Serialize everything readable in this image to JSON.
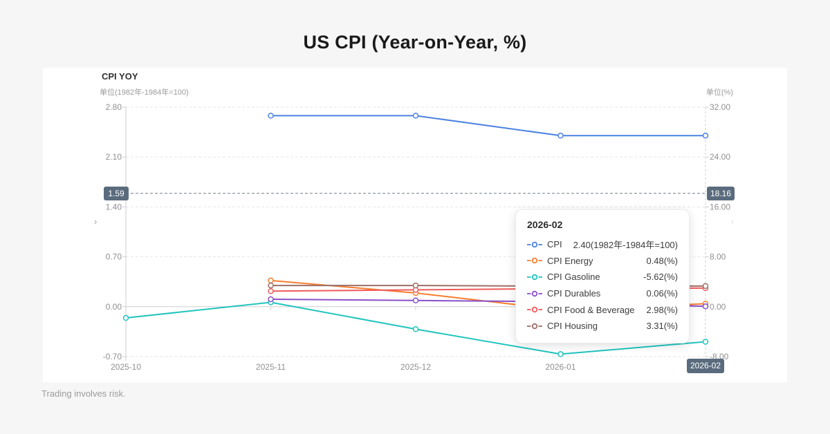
{
  "page": {
    "title": "US CPI (Year-on-Year, %)",
    "footer": "Trading involves risk."
  },
  "chart": {
    "header": "CPI YOY",
    "left_axis_unit": "单位(1982年-1984年=100)",
    "right_axis_unit": "单位(%)",
    "left_marker": "1.59",
    "right_marker": "18.16",
    "x_highlight": "2026-02",
    "pan_left_glyph": "›",
    "pan_right_glyph": "›"
  },
  "chart_data": {
    "type": "line",
    "categories": [
      "2025-10",
      "2025-11",
      "2025-12",
      "2026-01",
      "2026-02"
    ],
    "left_axis": {
      "ticks": [
        "2.80",
        "2.10",
        "1.40",
        "0.70",
        "0.00",
        "-0.70"
      ],
      "range": [
        -0.7,
        2.8
      ],
      "label": "单位(1982年-1984年=100)"
    },
    "right_axis": {
      "ticks": [
        "32.00",
        "24.00",
        "16.00",
        "8.00",
        "0.00",
        "-8.00"
      ],
      "range": [
        -8.0,
        32.0
      ],
      "label": "单位(%)"
    },
    "grid": true,
    "legend_position": "tooltip-only",
    "crosshair": {
      "left_value": 1.59,
      "right_value": 18.16,
      "category": "2026-02"
    },
    "series": [
      {
        "name": "CPI",
        "axis": "left",
        "color": "#4b82e1",
        "values": [
          null,
          2.68,
          2.68,
          2.4,
          2.4
        ]
      },
      {
        "name": "CPI Energy",
        "axis": "right",
        "color": "#f87d2d",
        "values": [
          null,
          4.2,
          2.2,
          -0.5,
          0.48
        ]
      },
      {
        "name": "CPI Gasoline",
        "axis": "right",
        "color": "#20c4be",
        "values": [
          -1.8,
          0.7,
          -3.6,
          -7.6,
          -5.62
        ]
      },
      {
        "name": "CPI Durables",
        "axis": "right",
        "color": "#8a4fc7",
        "values": [
          null,
          1.2,
          1.0,
          0.8,
          0.06
        ]
      },
      {
        "name": "CPI Food & Beverage",
        "axis": "right",
        "color": "#f05a5a",
        "values": [
          null,
          2.5,
          2.7,
          2.9,
          2.98
        ]
      },
      {
        "name": "CPI Housing",
        "axis": "right",
        "color": "#9c6f68",
        "values": [
          null,
          3.4,
          3.4,
          3.3,
          3.31
        ]
      }
    ]
  },
  "tooltip": {
    "header": "2026-02",
    "rows": [
      {
        "label": "CPI",
        "value": "2.40(1982年-1984年=100)",
        "color": "#4b82e1"
      },
      {
        "label": "CPI Energy",
        "value": "0.48(%)",
        "color": "#f87d2d"
      },
      {
        "label": "CPI Gasoline",
        "value": "-5.62(%)",
        "color": "#20c4be"
      },
      {
        "label": "CPI Durables",
        "value": "0.06(%)",
        "color": "#8a4fc7"
      },
      {
        "label": "CPI Food & Beverage",
        "value": "2.98(%)",
        "color": "#f05a5a"
      },
      {
        "label": "CPI Housing",
        "value": "3.31(%)",
        "color": "#9c6f68"
      }
    ]
  }
}
